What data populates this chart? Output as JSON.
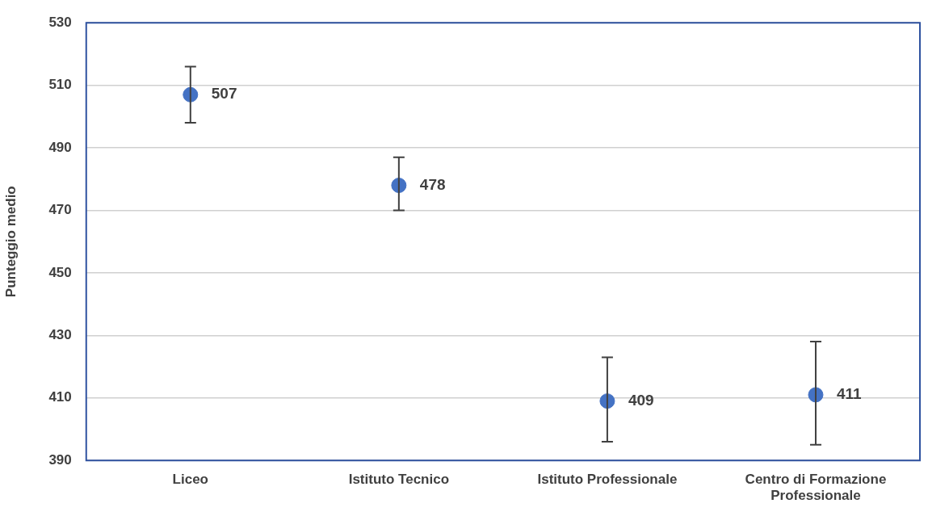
{
  "chart_data": {
    "type": "scatter",
    "ylabel": "Punteggio medio",
    "categories": [
      "Liceo",
      "Istituto Tecnico",
      "Istituto Professionale",
      "Centro di Formazione Professionale"
    ],
    "values": [
      507,
      478,
      409,
      411
    ],
    "errors": [
      [
        498,
        516
      ],
      [
        470,
        487
      ],
      [
        396,
        423
      ],
      [
        395,
        428
      ]
    ],
    "color": "#4472c4",
    "marker": "circle",
    "data_labels": true,
    "ylim": [
      390,
      530
    ],
    "yticks": [
      390,
      410,
      430,
      450,
      470,
      490,
      510,
      530
    ],
    "grid": "y",
    "legend": false
  }
}
